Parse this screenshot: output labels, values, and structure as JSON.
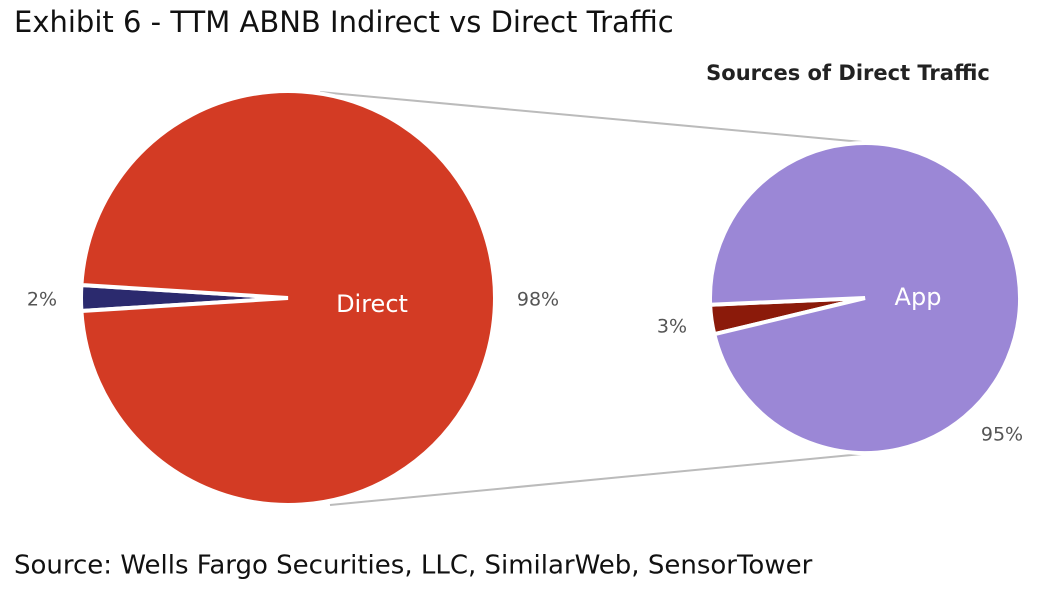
{
  "title": "Exhibit 6 - TTM ABNB Indirect vs Direct Traffic",
  "source": "Source: Wells Fargo Securities, LLC, SimilarWeb, SensorTower",
  "chart_data": [
    {
      "type": "pie",
      "categories": [
        null,
        "Direct"
      ],
      "values": [
        2,
        98
      ],
      "value_labels": [
        "2%",
        "98%"
      ],
      "colors": [
        "#2b2a6e",
        "#d33b24"
      ]
    },
    {
      "type": "pie",
      "title": "Sources of Direct Traffic",
      "categories": [
        null,
        "App"
      ],
      "values": [
        3,
        95
      ],
      "value_labels": [
        "3%",
        "95%"
      ],
      "colors": [
        "#8b1a0a",
        "#9b87d6"
      ]
    }
  ]
}
